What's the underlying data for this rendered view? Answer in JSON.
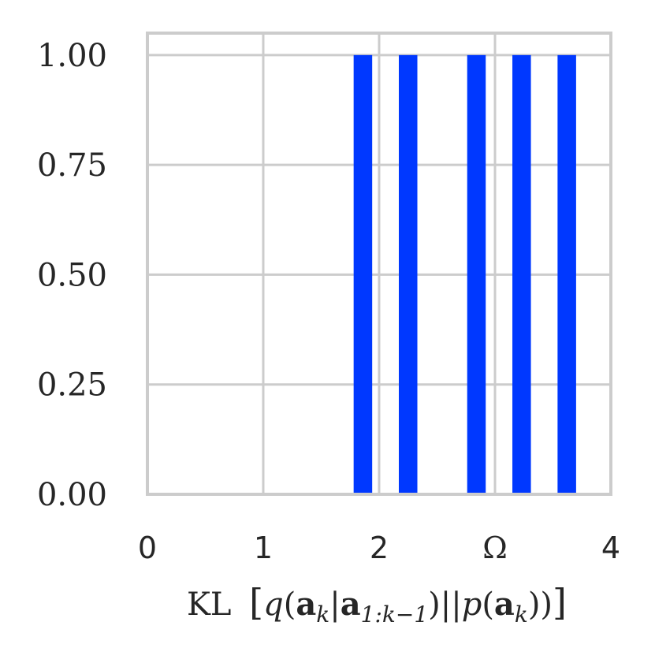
{
  "chart_data": {
    "type": "bar",
    "xlabel_parts": {
      "kl": "KL",
      "lbracket": "[",
      "q": "q",
      "lparen1": "(",
      "a1": "a",
      "k1": "k",
      "bar": "|",
      "a2": "a",
      "sub2": "1:k−1",
      "rparen1": ")",
      "dbar": "||",
      "p": "p",
      "lparen2": "(",
      "a3": "a",
      "k3": "k",
      "rparen2": "))",
      "rbracket": "]"
    },
    "ylabel": "",
    "xlim": [
      0,
      4
    ],
    "ylim": [
      0,
      1.05
    ],
    "x_ticks": [
      {
        "value": 0,
        "label": "0"
      },
      {
        "value": 1,
        "label": "1"
      },
      {
        "value": 2,
        "label": "2"
      },
      {
        "value": 3,
        "label": "Ω"
      },
      {
        "value": 4,
        "label": "4"
      }
    ],
    "y_ticks": [
      {
        "value": 0.0,
        "label": "0.00"
      },
      {
        "value": 0.25,
        "label": "0.25"
      },
      {
        "value": 0.5,
        "label": "0.50"
      },
      {
        "value": 0.75,
        "label": "0.75"
      },
      {
        "value": 1.0,
        "label": "1.00"
      }
    ],
    "bar_color": "#0038ff",
    "bar_width": 0.16,
    "bars": [
      {
        "x": 1.86,
        "value": 1.0
      },
      {
        "x": 2.25,
        "value": 1.0
      },
      {
        "x": 2.84,
        "value": 1.0
      },
      {
        "x": 3.23,
        "value": 1.0
      },
      {
        "x": 3.62,
        "value": 1.0
      }
    ],
    "grid": true,
    "grid_color": "#cccccc",
    "legend": "none"
  }
}
